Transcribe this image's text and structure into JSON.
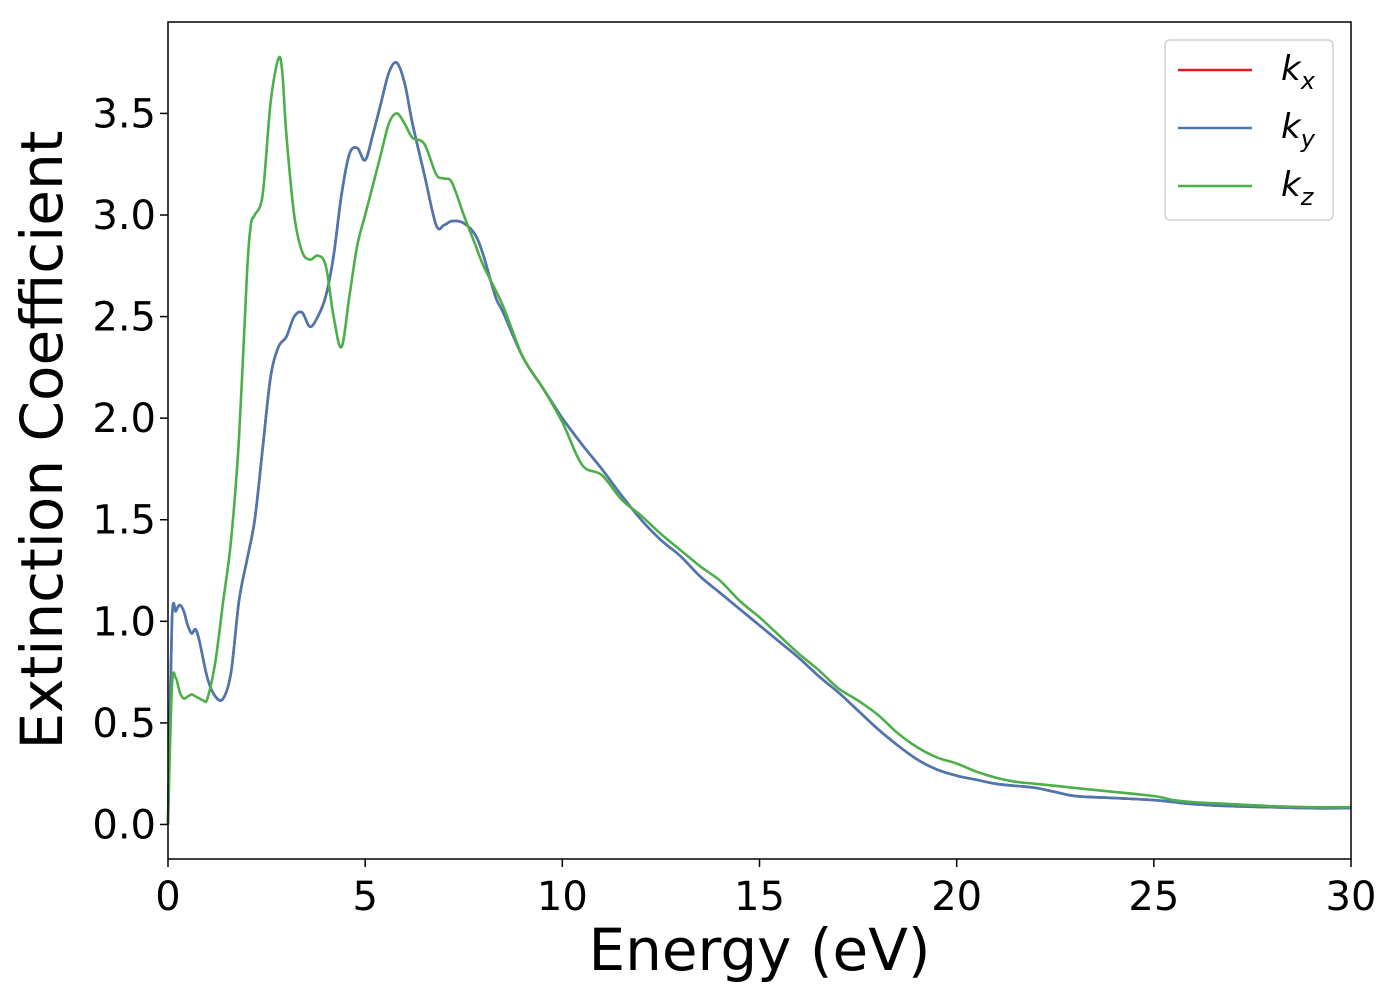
{
  "chart_data": {
    "type": "line",
    "title": "",
    "xlabel": "Energy (eV)",
    "ylabel": "Extinction Coefficient",
    "xlim": [
      0,
      30
    ],
    "ylim": [
      -0.17,
      3.95
    ],
    "xticks": [
      0,
      5,
      10,
      15,
      20,
      25,
      30
    ],
    "xtick_labels": [
      "0",
      "5",
      "10",
      "15",
      "20",
      "25",
      "30"
    ],
    "yticks": [
      0.0,
      0.5,
      1.0,
      1.5,
      2.0,
      2.5,
      3.0,
      3.5
    ],
    "ytick_labels": [
      "0.0",
      "0.5",
      "1.0",
      "1.5",
      "2.0",
      "2.5",
      "3.0",
      "3.5"
    ],
    "grid": false,
    "legend_position": "top-right",
    "series": [
      {
        "name": "k",
        "subscript": "x",
        "color": "#e41a1c",
        "x": [
          0,
          0.1,
          0.2,
          0.3,
          0.4,
          0.5,
          0.6,
          0.7,
          0.8,
          1.0,
          1.2,
          1.4,
          1.6,
          1.8,
          2.0,
          2.2,
          2.4,
          2.6,
          2.8,
          3.0,
          3.2,
          3.4,
          3.6,
          3.8,
          4.0,
          4.2,
          4.4,
          4.6,
          4.8,
          5.0,
          5.2,
          5.4,
          5.6,
          5.8,
          6.0,
          6.2,
          6.5,
          6.8,
          7.0,
          7.2,
          7.5,
          7.8,
          8.0,
          8.3,
          8.5,
          9.0,
          9.5,
          10.0,
          10.5,
          11.0,
          11.5,
          12.0,
          12.5,
          13.0,
          13.5,
          14.0,
          14.5,
          15.0,
          15.5,
          16.0,
          16.5,
          17.0,
          17.5,
          18.0,
          18.5,
          19.0,
          19.5,
          20.0,
          20.5,
          21.0,
          21.5,
          22.0,
          22.5,
          23.0,
          24.0,
          25.0,
          25.5,
          26.0,
          27.0,
          28.0,
          29.0,
          30.0
        ],
        "y": [
          0.0,
          1.0,
          1.05,
          1.08,
          1.05,
          0.98,
          0.94,
          0.96,
          0.9,
          0.72,
          0.63,
          0.62,
          0.75,
          1.1,
          1.3,
          1.5,
          1.85,
          2.2,
          2.35,
          2.4,
          2.5,
          2.52,
          2.45,
          2.5,
          2.6,
          2.8,
          3.1,
          3.3,
          3.33,
          3.27,
          3.4,
          3.55,
          3.7,
          3.75,
          3.65,
          3.45,
          3.2,
          2.95,
          2.95,
          2.97,
          2.96,
          2.9,
          2.8,
          2.6,
          2.52,
          2.3,
          2.15,
          2.0,
          1.87,
          1.75,
          1.62,
          1.5,
          1.4,
          1.32,
          1.22,
          1.14,
          1.06,
          0.98,
          0.9,
          0.82,
          0.73,
          0.65,
          0.56,
          0.47,
          0.39,
          0.32,
          0.27,
          0.24,
          0.22,
          0.2,
          0.19,
          0.18,
          0.16,
          0.14,
          0.13,
          0.12,
          0.11,
          0.1,
          0.09,
          0.085,
          0.08,
          0.08
        ]
      },
      {
        "name": "k",
        "subscript": "y",
        "color": "#4a79b1",
        "x": [
          0,
          0.1,
          0.2,
          0.3,
          0.4,
          0.5,
          0.6,
          0.7,
          0.8,
          1.0,
          1.2,
          1.4,
          1.6,
          1.8,
          2.0,
          2.2,
          2.4,
          2.6,
          2.8,
          3.0,
          3.2,
          3.4,
          3.6,
          3.8,
          4.0,
          4.2,
          4.4,
          4.6,
          4.8,
          5.0,
          5.2,
          5.4,
          5.6,
          5.8,
          6.0,
          6.2,
          6.5,
          6.8,
          7.0,
          7.2,
          7.5,
          7.8,
          8.0,
          8.3,
          8.5,
          9.0,
          9.5,
          10.0,
          10.5,
          11.0,
          11.5,
          12.0,
          12.5,
          13.0,
          13.5,
          14.0,
          14.5,
          15.0,
          15.5,
          16.0,
          16.5,
          17.0,
          17.5,
          18.0,
          18.5,
          19.0,
          19.5,
          20.0,
          20.5,
          21.0,
          21.5,
          22.0,
          22.5,
          23.0,
          24.0,
          25.0,
          25.5,
          26.0,
          27.0,
          28.0,
          29.0,
          30.0
        ],
        "y": [
          0.0,
          1.0,
          1.05,
          1.08,
          1.05,
          0.98,
          0.94,
          0.96,
          0.9,
          0.72,
          0.63,
          0.62,
          0.75,
          1.1,
          1.3,
          1.5,
          1.85,
          2.2,
          2.35,
          2.4,
          2.5,
          2.52,
          2.45,
          2.5,
          2.6,
          2.8,
          3.1,
          3.3,
          3.33,
          3.27,
          3.4,
          3.55,
          3.7,
          3.75,
          3.65,
          3.45,
          3.2,
          2.95,
          2.95,
          2.97,
          2.96,
          2.9,
          2.8,
          2.6,
          2.52,
          2.3,
          2.15,
          2.0,
          1.87,
          1.75,
          1.62,
          1.5,
          1.4,
          1.32,
          1.22,
          1.14,
          1.06,
          0.98,
          0.9,
          0.82,
          0.73,
          0.65,
          0.56,
          0.47,
          0.39,
          0.32,
          0.27,
          0.24,
          0.22,
          0.2,
          0.19,
          0.18,
          0.16,
          0.14,
          0.13,
          0.12,
          0.11,
          0.1,
          0.09,
          0.085,
          0.08,
          0.08
        ]
      },
      {
        "name": "k",
        "subscript": "z",
        "color": "#4daf4a",
        "x": [
          0,
          0.1,
          0.2,
          0.3,
          0.4,
          0.5,
          0.6,
          0.7,
          0.8,
          0.9,
          1.0,
          1.2,
          1.4,
          1.6,
          1.8,
          2.0,
          2.1,
          2.2,
          2.4,
          2.6,
          2.8,
          2.9,
          3.0,
          3.2,
          3.4,
          3.6,
          3.8,
          4.0,
          4.2,
          4.4,
          4.6,
          4.8,
          5.0,
          5.2,
          5.4,
          5.6,
          5.8,
          6.0,
          6.2,
          6.5,
          6.8,
          7.0,
          7.2,
          7.5,
          7.8,
          8.0,
          8.5,
          9.0,
          9.5,
          10.0,
          10.5,
          11.0,
          11.5,
          12.0,
          12.5,
          13.0,
          13.5,
          14.0,
          14.5,
          15.0,
          15.5,
          16.0,
          16.5,
          17.0,
          17.5,
          18.0,
          18.5,
          19.0,
          19.5,
          20.0,
          20.5,
          21.0,
          21.5,
          22.0,
          23.0,
          24.0,
          25.0,
          25.5,
          26.0,
          27.0,
          28.0,
          29.0,
          30.0
        ],
        "y": [
          0.0,
          0.68,
          0.72,
          0.65,
          0.62,
          0.63,
          0.64,
          0.63,
          0.62,
          0.61,
          0.62,
          0.8,
          1.1,
          1.4,
          1.9,
          2.7,
          2.95,
          3.0,
          3.1,
          3.55,
          3.77,
          3.7,
          3.4,
          3.0,
          2.82,
          2.78,
          2.8,
          2.75,
          2.5,
          2.35,
          2.6,
          2.85,
          3.0,
          3.15,
          3.3,
          3.45,
          3.5,
          3.45,
          3.38,
          3.35,
          3.2,
          3.18,
          3.16,
          3.0,
          2.85,
          2.75,
          2.55,
          2.3,
          2.15,
          1.98,
          1.77,
          1.72,
          1.6,
          1.52,
          1.43,
          1.35,
          1.27,
          1.2,
          1.1,
          1.02,
          0.93,
          0.84,
          0.76,
          0.67,
          0.61,
          0.54,
          0.45,
          0.38,
          0.33,
          0.3,
          0.26,
          0.23,
          0.21,
          0.2,
          0.18,
          0.16,
          0.14,
          0.12,
          0.11,
          0.1,
          0.09,
          0.085,
          0.085
        ]
      }
    ]
  }
}
